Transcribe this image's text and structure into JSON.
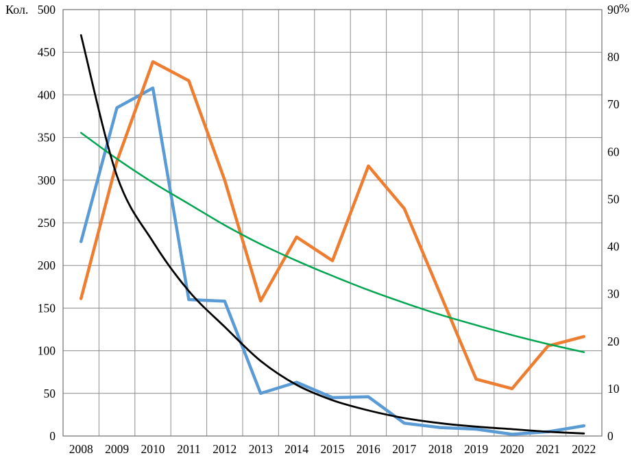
{
  "chart_data": {
    "type": "line",
    "title": "",
    "legend": "none",
    "grid": true,
    "categories": [
      "2008",
      "2009",
      "2010",
      "2011",
      "2012",
      "2013",
      "2014",
      "2015",
      "2016",
      "2017",
      "2018",
      "2019",
      "2020",
      "2021",
      "2022"
    ],
    "left_axis": {
      "label": "Кол.",
      "min": 0,
      "max": 500,
      "step": 50,
      "ticks": [
        "0",
        "50",
        "100",
        "150",
        "200",
        "250",
        "300",
        "350",
        "400",
        "450",
        "500"
      ]
    },
    "right_axis": {
      "label": "%",
      "min": 0,
      "max": 90,
      "step": 10,
      "ticks": [
        "0",
        "10",
        "20",
        "30",
        "40",
        "50",
        "60",
        "70",
        "80",
        "90"
      ]
    },
    "colors": {
      "count_line": "#5B9BD5",
      "percent_line": "#ED7D31",
      "count_trend": "#000000",
      "percent_trend": "#00A550",
      "grid": "#8c8c8c"
    },
    "series": [
      {
        "id": "count-actual",
        "axis": "left",
        "color": "#5B9BD5",
        "width": 4.5,
        "smooth": false,
        "values": [
          228,
          385,
          408,
          160,
          158,
          50,
          63,
          45,
          46,
          15,
          10,
          8,
          2,
          5,
          12
        ]
      },
      {
        "id": "percent-actual",
        "axis": "right",
        "color": "#ED7D31",
        "width": 4.5,
        "smooth": false,
        "values": [
          29,
          58,
          79,
          75,
          54,
          28.5,
          42,
          37,
          57,
          48,
          30,
          12,
          10,
          19,
          21
        ]
      },
      {
        "id": "percent-trend",
        "axis": "right",
        "color": "#00A550",
        "width": 2.5,
        "smooth": true,
        "values": [
          64,
          58.5,
          53.5,
          49,
          44.5,
          40.5,
          37,
          33.8,
          30.8,
          28.1,
          25.6,
          23.4,
          21.3,
          19.4,
          17.7
        ]
      },
      {
        "id": "count-trend",
        "axis": "left",
        "color": "#000000",
        "width": 2.8,
        "smooth": true,
        "values": [
          470,
          305,
          228,
          170,
          128,
          88,
          60,
          42,
          30,
          21,
          15,
          11,
          8,
          5,
          3
        ]
      }
    ]
  }
}
